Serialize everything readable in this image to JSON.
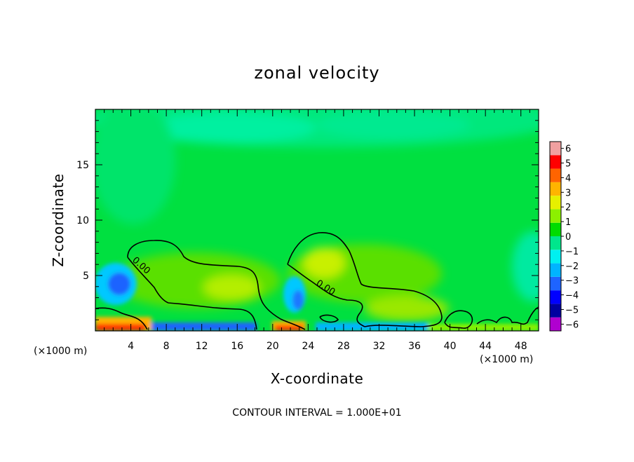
{
  "chart_data": {
    "type": "heatmap",
    "title": "zonal velocity",
    "xlabel": "X-coordinate",
    "ylabel": "Z-coordinate",
    "x_unit": "(×1000 m)",
    "x_unit_right": "(×1000 m)",
    "xlim": [
      0,
      50
    ],
    "ylim": [
      0,
      20
    ],
    "x_ticks": [
      4,
      8,
      12,
      16,
      20,
      24,
      28,
      32,
      36,
      40,
      44,
      48
    ],
    "y_ticks": [
      5,
      10,
      15
    ],
    "colorbar": {
      "min": -6,
      "max": 6,
      "labels": [
        6,
        5,
        4,
        3,
        2,
        1,
        0,
        -1,
        -2,
        -3,
        -4,
        -5,
        -6
      ],
      "colors": [
        "#b000d0",
        "#0000a0",
        "#0000ff",
        "#1e64ff",
        "#00b4ff",
        "#00f0f0",
        "#00e68c",
        "#00dc00",
        "#8cf000",
        "#e6f000",
        "#ffb400",
        "#ff6400",
        "#ff0000",
        "#f0a0a0"
      ]
    },
    "contour_level": 0.0,
    "contour_labels": [
      "0.00",
      "0.00"
    ],
    "contour_interval_text": "CONTOUR INTERVAL = 1.000E+01"
  }
}
